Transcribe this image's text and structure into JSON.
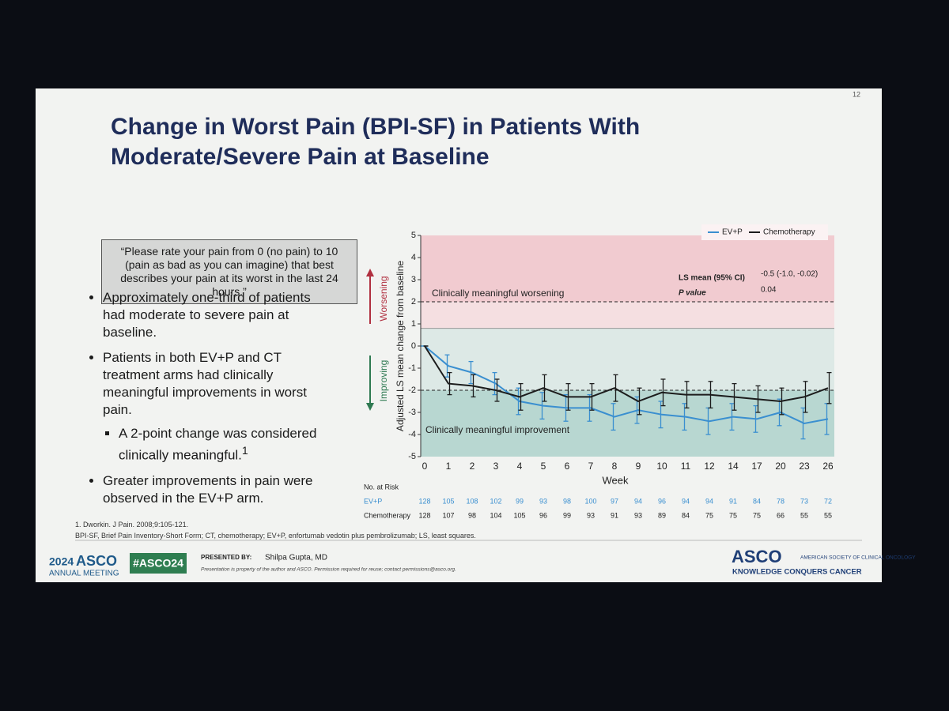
{
  "slide_number": "12",
  "title": "Change in Worst Pain (BPI-SF) in Patients With Moderate/Severe Pain at Baseline",
  "quote": "“Please rate your pain from 0 (no pain) to 10 (pain as bad as you can imagine) that best describes your pain at its worst in the last 24 hours.”",
  "bullets": [
    {
      "text": "Approximately one-third of patients had moderate to severe pain at baseline."
    },
    {
      "text": "Patients in both EV+P and CT treatment arms had clinically meaningful improvements in worst pain.",
      "sub": [
        {
          "text": "A 2-point change was considered clinically meaningful.",
          "ref": "1"
        }
      ]
    },
    {
      "text": "Greater improvements in pain were observed in the EV+P arm."
    }
  ],
  "footnotes": [
    "1. Dworkin. J Pain. 2008;9:105-121.",
    "BPI-SF, Brief Pain Inventory-Short Form; CT, chemotherapy; EV+P, enfortumab vedotin plus pembrolizumab; LS, least squares."
  ],
  "footer": {
    "year": "2024",
    "brand": "ASCO",
    "meeting": "ANNUAL MEETING",
    "hashtag": "#ASCO24",
    "presented_by": "PRESENTED BY:",
    "presenter": "Shilpa Gupta, MD",
    "disclaimer": "Presentation is property of the author and ASCO. Permission required for reuse; contact permissions@asco.org.",
    "logo": "ASCO",
    "society": "AMERICAN SOCIETY OF CLINICAL ONCOLOGY",
    "tagline": "KNOWLEDGE CONQUERS CANCER"
  },
  "chart_data": {
    "type": "line",
    "y_label": "Adjusted LS mean change from baseline",
    "x_label": "Week",
    "categories": [
      0,
      1,
      2,
      3,
      4,
      5,
      6,
      7,
      8,
      9,
      10,
      11,
      12,
      14,
      17,
      20,
      23,
      26
    ],
    "series": [
      {
        "name": "EV+P",
        "color": "#3a8fd0",
        "values": [
          0,
          -0.9,
          -1.2,
          -1.7,
          -2.5,
          -2.7,
          -2.8,
          -2.8,
          -3.2,
          -2.9,
          -3.1,
          -3.2,
          -3.4,
          -3.2,
          -3.3,
          -3.0,
          -3.5,
          -3.3
        ],
        "errors": [
          0,
          0.5,
          0.5,
          0.5,
          0.6,
          0.6,
          0.6,
          0.6,
          0.6,
          0.6,
          0.6,
          0.6,
          0.6,
          0.6,
          0.6,
          0.6,
          0.7,
          0.7
        ]
      },
      {
        "name": "Chemotherapy",
        "color": "#1c1c1c",
        "values": [
          0,
          -1.7,
          -1.8,
          -2.0,
          -2.3,
          -1.9,
          -2.3,
          -2.3,
          -1.9,
          -2.5,
          -2.1,
          -2.2,
          -2.2,
          -2.3,
          -2.4,
          -2.5,
          -2.3,
          -1.9
        ],
        "errors": [
          0,
          0.5,
          0.5,
          0.5,
          0.6,
          0.6,
          0.6,
          0.6,
          0.6,
          0.6,
          0.6,
          0.6,
          0.6,
          0.6,
          0.6,
          0.6,
          0.7,
          0.7
        ]
      }
    ],
    "ylim": [
      -5,
      5
    ],
    "yticks": [
      -5,
      -4,
      -3,
      -2,
      -1,
      0,
      1,
      2,
      3,
      4,
      5
    ],
    "zones": [
      {
        "from": 2,
        "to": 5,
        "color": "#f1cbd0"
      },
      {
        "from": 0.8,
        "to": 2,
        "color": "#f5dfe1"
      },
      {
        "from": -2,
        "to": 0.8,
        "color": "#dde9e6"
      },
      {
        "from": -5,
        "to": -2,
        "color": "#b8d7d1"
      }
    ],
    "thresholds": [
      {
        "value": 2,
        "label": "Clinically meaningful worsening"
      },
      {
        "value": -2,
        "label": "Clinically meaningful improvement"
      }
    ],
    "direction_labels": {
      "up": "Worsening",
      "down": "Improving"
    },
    "annotations": {
      "ls_mean_label": "LS mean (95% CI)",
      "ls_mean": "-0.5 (-1.0, -0.02)",
      "p_label": "P value",
      "p": "0.04"
    },
    "legend_position": "top-right",
    "risk_table": {
      "title": "No. at Risk",
      "rows": [
        {
          "name": "EV+P",
          "color": "#3a8fd0",
          "values": [
            128,
            105,
            108,
            102,
            99,
            93,
            98,
            100,
            97,
            94,
            96,
            94,
            94,
            91,
            84,
            78,
            73,
            72
          ]
        },
        {
          "name": "Chemotherapy",
          "color": "#222222",
          "values": [
            128,
            107,
            98,
            104,
            105,
            96,
            99,
            93,
            91,
            93,
            89,
            84,
            75,
            75,
            75,
            66,
            55,
            55
          ]
        }
      ]
    }
  }
}
